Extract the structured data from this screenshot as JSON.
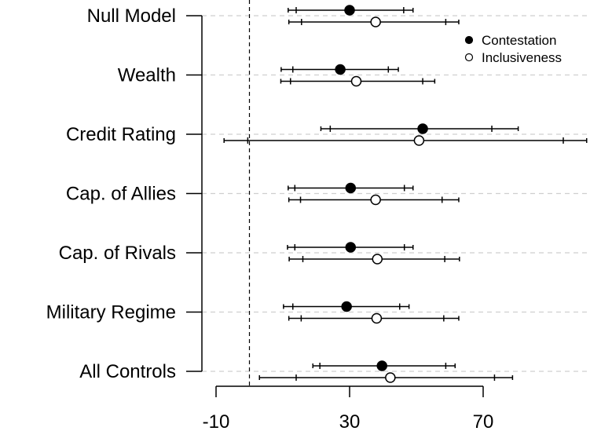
{
  "chart_data": {
    "type": "scatter",
    "title": "",
    "xlabel": "",
    "ylabel": "",
    "xlim": [
      -13,
      100
    ],
    "x_ticks": [
      -10,
      30,
      70
    ],
    "reference_line": 0,
    "grid": "horizontal dashed",
    "legend_position": "top-right",
    "categories": [
      "Null Model",
      "Wealth",
      "Credit Rating",
      "Cap. of Allies",
      "Cap. of Rivals",
      "Military Regime",
      "All Controls"
    ],
    "series": [
      {
        "name": "Contestation",
        "marker": "filled circle",
        "color": "#000000",
        "estimates": [
          30.0,
          27.2,
          51.9,
          30.3,
          30.3,
          29.1,
          39.7
        ],
        "inner_interval": [
          [
            14.0,
            46.2
          ],
          [
            13.0,
            41.6
          ],
          [
            24.2,
            72.6
          ],
          [
            13.6,
            46.4
          ],
          [
            13.6,
            46.4
          ],
          [
            13.0,
            45.0
          ],
          [
            21.1,
            58.8
          ]
        ],
        "outer_interval": [
          [
            11.6,
            49.0
          ],
          [
            9.5,
            44.6
          ],
          [
            21.4,
            80.5
          ],
          [
            11.6,
            49.0
          ],
          [
            11.4,
            49.0
          ],
          [
            10.2,
            47.8
          ],
          [
            19.0,
            61.6
          ]
        ]
      },
      {
        "name": "Inclusiveness",
        "marker": "open circle",
        "color": "#000000",
        "estimates": [
          37.8,
          32.0,
          50.8,
          37.8,
          38.3,
          38.1,
          42.2
        ],
        "inner_interval": [
          [
            15.6,
            58.8
          ],
          [
            12.3,
            51.9
          ],
          [
            -0.5,
            94.0
          ],
          [
            15.3,
            57.7
          ],
          [
            16.0,
            58.5
          ],
          [
            15.5,
            58.2
          ],
          [
            14.0,
            73.4
          ]
        ],
        "outer_interval": [
          [
            11.8,
            62.7
          ],
          [
            9.4,
            55.5
          ],
          [
            -7.6,
            101.0
          ],
          [
            11.8,
            62.7
          ],
          [
            11.9,
            62.9
          ],
          [
            11.8,
            62.7
          ],
          [
            3.0,
            78.8
          ]
        ]
      }
    ]
  }
}
